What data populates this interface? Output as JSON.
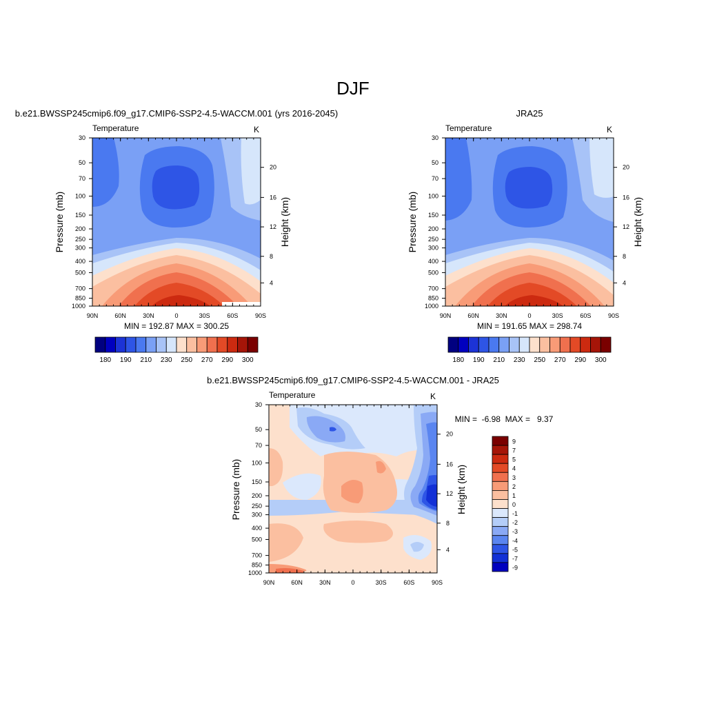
{
  "title": "DJF",
  "colors": {
    "abs_levels": [
      "#000080",
      "#0000bf",
      "#1c33d6",
      "#2e55e6",
      "#4a79f0",
      "#7aa0f5",
      "#a8c3f7",
      "#d6e6fb",
      "#fde0cc",
      "#fbbfa0",
      "#f89b77",
      "#f0704e",
      "#e34a26",
      "#cc2a10",
      "#a51508",
      "#7a0000"
    ],
    "diff_levels": [
      "#000080",
      "#0000bf",
      "#1230d6",
      "#2e55e6",
      "#5a85f0",
      "#8aa9f5",
      "#b4cdf8",
      "#dbe8fc",
      "#fde0cc",
      "#fbbfa0",
      "#f89b77",
      "#f0704e",
      "#e34a26",
      "#cc2a10",
      "#a51508",
      "#7a0000"
    ]
  },
  "chart_data": [
    {
      "type": "heatmap",
      "subtitle": "b.e21.BWSSP245cmip6.f09_g17.CMIP6-SSP2-4.5-WACCM.001 (yrs 2016-2045)",
      "field": "Temperature",
      "units": "K",
      "ylabel": "Pressure (mb)",
      "ylabel_right": "Height (km)",
      "x_ticks": [
        "90N",
        "60N",
        "30N",
        "0",
        "30S",
        "60S",
        "90S"
      ],
      "y_ticks": [
        "30",
        "50",
        "70",
        "100",
        "150",
        "200",
        "250",
        "300",
        "400",
        "500",
        "700",
        "850",
        "1000"
      ],
      "height_ticks": [
        "20",
        "16",
        "12",
        "8",
        "4"
      ],
      "min_max": "MIN = 192.87  MAX = 300.25",
      "colorbar_labels": [
        "180",
        "190",
        "210",
        "230",
        "250",
        "270",
        "290",
        "300"
      ]
    },
    {
      "type": "heatmap",
      "subtitle": "JRA25",
      "field": "Temperature",
      "units": "K",
      "ylabel": "Pressure (mb)",
      "ylabel_right": "Height (km)",
      "x_ticks": [
        "90N",
        "60N",
        "30N",
        "0",
        "30S",
        "60S",
        "90S"
      ],
      "y_ticks": [
        "30",
        "50",
        "70",
        "100",
        "150",
        "200",
        "250",
        "300",
        "400",
        "500",
        "700",
        "850",
        "1000"
      ],
      "height_ticks": [
        "20",
        "16",
        "12",
        "8",
        "4"
      ],
      "min_max": "MIN = 191.65  MAX = 298.74",
      "colorbar_labels": [
        "180",
        "190",
        "210",
        "230",
        "250",
        "270",
        "290",
        "300"
      ]
    },
    {
      "type": "heatmap",
      "subtitle": "b.e21.BWSSP245cmip6.f09_g17.CMIP6-SSP2-4.5-WACCM.001 - JRA25",
      "field": "Temperature",
      "units": "K",
      "ylabel": "Pressure (mb)",
      "ylabel_right": "Height (km)",
      "x_ticks": [
        "90N",
        "60N",
        "30N",
        "0",
        "30S",
        "60S",
        "90S"
      ],
      "y_ticks": [
        "30",
        "50",
        "70",
        "100",
        "150",
        "200",
        "250",
        "300",
        "400",
        "500",
        "700",
        "850",
        "1000"
      ],
      "height_ticks": [
        "20",
        "16",
        "12",
        "8",
        "4"
      ],
      "min_max": "MIN =  -6.98  MAX =   9.37",
      "colorbar_labels": [
        "9",
        "7",
        "5",
        "4",
        "3",
        "2",
        "1",
        "0",
        "-1",
        "-2",
        "-3",
        "-4",
        "-5",
        "-7",
        "-9"
      ]
    }
  ]
}
